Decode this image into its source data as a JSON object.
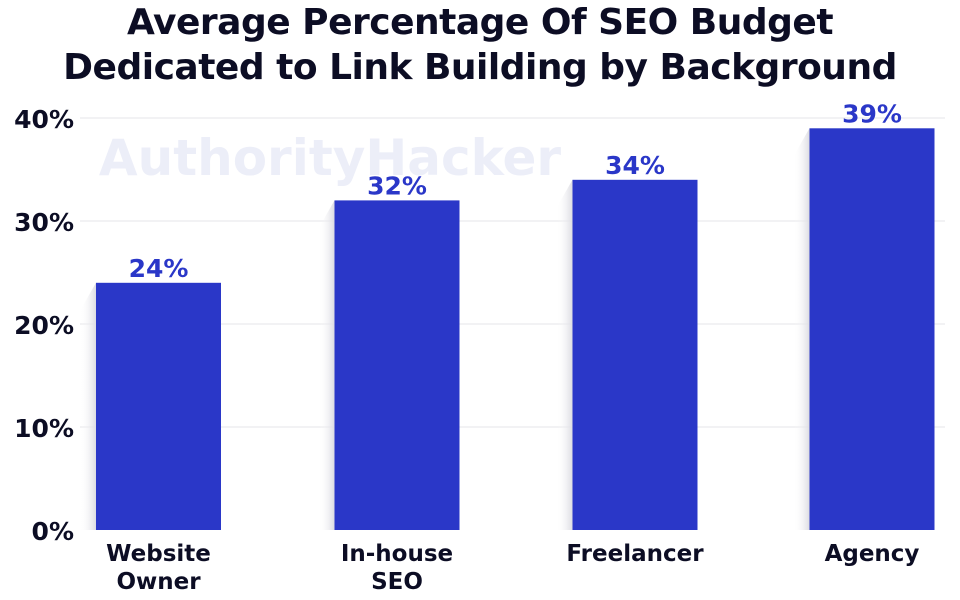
{
  "chart_data": {
    "type": "bar",
    "title_lines": [
      "Average Percentage Of SEO Budget",
      "Dedicated to Link Building by Background"
    ],
    "categories": [
      [
        "Website",
        "Owner"
      ],
      [
        "In-house",
        "SEO"
      ],
      [
        "Freelancer"
      ],
      [
        "Agency"
      ]
    ],
    "values": [
      24,
      32,
      34,
      39
    ],
    "value_labels": [
      "24%",
      "32%",
      "34%",
      "39%"
    ],
    "y_ticks": [
      0,
      10,
      20,
      30,
      40
    ],
    "y_tick_labels": [
      "0%",
      "10%",
      "20%",
      "30%",
      "40%"
    ],
    "ylim": [
      0,
      40
    ],
    "grid": true,
    "watermark": "AuthorityHacker"
  },
  "colors": {
    "bar": "#2a37c8",
    "value_label": "#2a37c8",
    "text": "#0c0d24",
    "grid": "#e4e4e8",
    "watermark": "#eceef8",
    "shadow": "#e6e6ea"
  }
}
